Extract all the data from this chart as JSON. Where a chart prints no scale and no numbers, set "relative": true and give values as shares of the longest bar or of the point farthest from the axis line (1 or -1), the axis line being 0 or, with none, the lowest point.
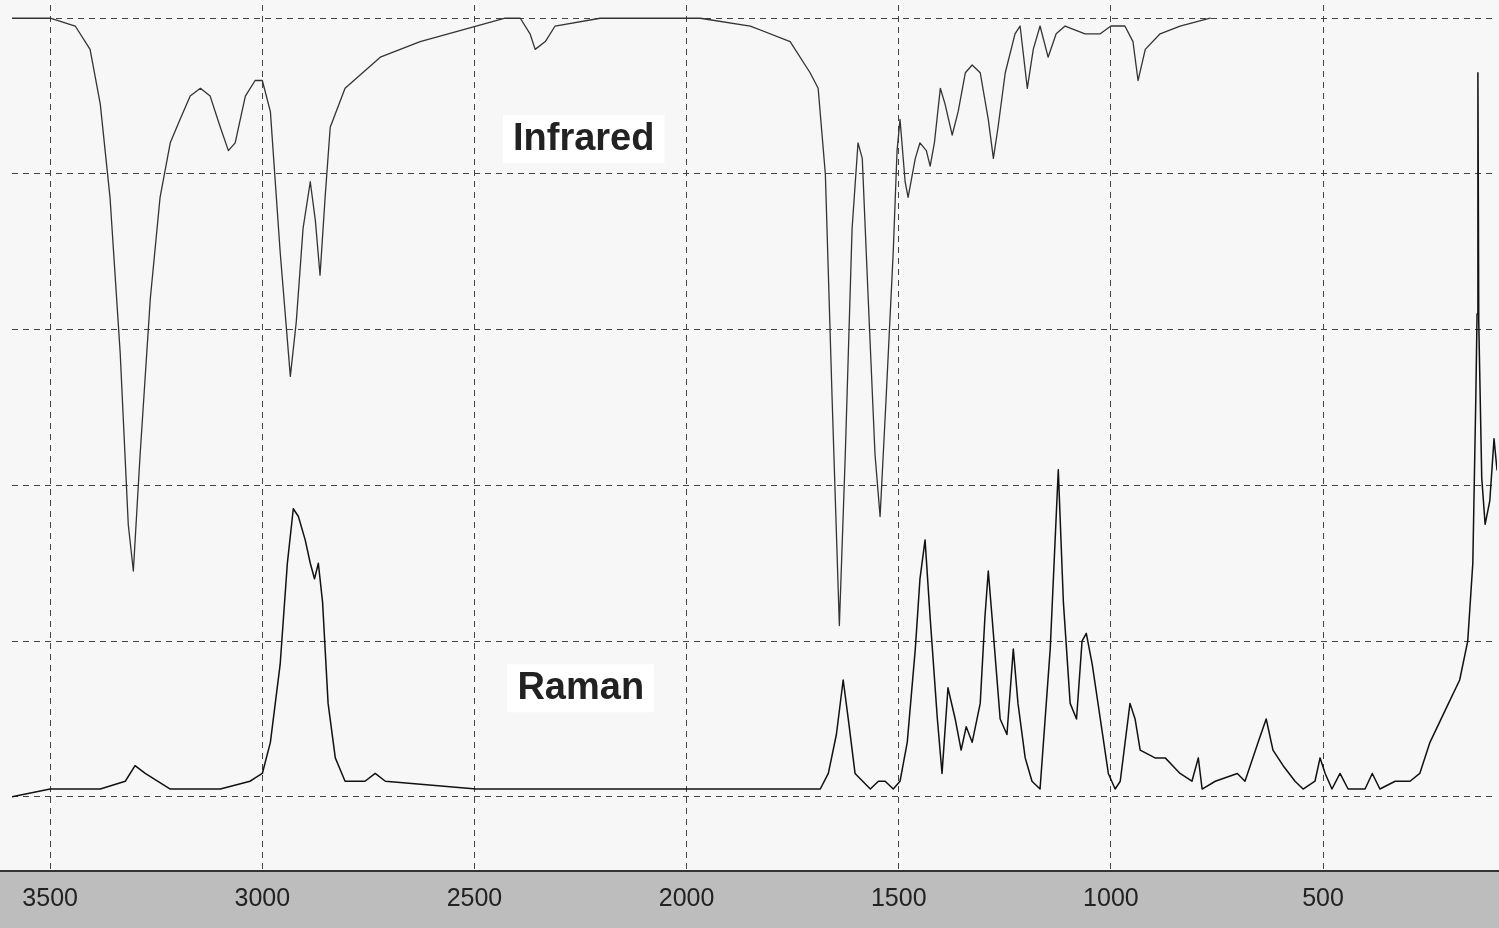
{
  "chart_data": {
    "type": "line",
    "relative": true,
    "grid": true,
    "legend": false,
    "marker": "none",
    "xlim": [
      3590,
      90
    ],
    "xticks": [
      3500,
      3000,
      2500,
      2000,
      1500,
      1000,
      500
    ],
    "series": [
      {
        "name": "Infrared",
        "color": "#333333",
        "x": [
          3590,
          3500,
          3441,
          3406,
          3382,
          3359,
          3335,
          3316,
          3304,
          3288,
          3264,
          3241,
          3217,
          3194,
          3170,
          3146,
          3123,
          3099,
          3080,
          3064,
          3040,
          3017,
          3000,
          2981,
          2958,
          2934,
          2920,
          2904,
          2887,
          2875,
          2864,
          2852,
          2840,
          2805,
          2722,
          2628,
          2496,
          2428,
          2392,
          2369,
          2357,
          2333,
          2310,
          2204,
          2086,
          1968,
          1850,
          1756,
          1709,
          1690,
          1673,
          1657,
          1640,
          1626,
          1610,
          1596,
          1586,
          1572,
          1556,
          1544,
          1530,
          1513,
          1504,
          1497,
          1485,
          1478,
          1461,
          1450,
          1435,
          1426,
          1416,
          1402,
          1391,
          1374,
          1360,
          1343,
          1327,
          1308,
          1289,
          1277,
          1266,
          1249,
          1226,
          1214,
          1197,
          1183,
          1167,
          1148,
          1129,
          1108,
          1061,
          1025,
          1000,
          967,
          948,
          936,
          919,
          884,
          837,
          766
        ],
        "values": [
          1.0,
          1.0,
          0.99,
          0.96,
          0.89,
          0.77,
          0.57,
          0.35,
          0.29,
          0.44,
          0.64,
          0.77,
          0.84,
          0.87,
          0.9,
          0.91,
          0.9,
          0.86,
          0.83,
          0.84,
          0.9,
          0.92,
          0.92,
          0.88,
          0.7,
          0.54,
          0.61,
          0.73,
          0.79,
          0.74,
          0.67,
          0.77,
          0.86,
          0.91,
          0.95,
          0.97,
          0.99,
          1.0,
          1.0,
          0.98,
          0.96,
          0.97,
          0.99,
          1.0,
          1.0,
          1.0,
          0.99,
          0.97,
          0.93,
          0.91,
          0.8,
          0.51,
          0.22,
          0.44,
          0.73,
          0.84,
          0.82,
          0.64,
          0.44,
          0.36,
          0.51,
          0.7,
          0.83,
          0.87,
          0.79,
          0.77,
          0.82,
          0.84,
          0.83,
          0.81,
          0.84,
          0.91,
          0.89,
          0.85,
          0.88,
          0.93,
          0.94,
          0.93,
          0.87,
          0.82,
          0.86,
          0.93,
          0.98,
          0.99,
          0.91,
          0.96,
          0.99,
          0.95,
          0.98,
          0.99,
          0.98,
          0.98,
          0.99,
          0.99,
          0.97,
          0.92,
          0.96,
          0.98,
          0.99,
          1.0
        ]
      },
      {
        "name": "Raman",
        "color": "#111111",
        "x": [
          3590,
          3500,
          3382,
          3323,
          3300,
          3276,
          3217,
          3099,
          3029,
          3000,
          2981,
          2958,
          2941,
          2927,
          2915,
          2899,
          2887,
          2877,
          2868,
          2858,
          2845,
          2828,
          2805,
          2758,
          2734,
          2710,
          2496,
          2204,
          1968,
          1732,
          1685,
          1666,
          1647,
          1631,
          1619,
          1603,
          1567,
          1548,
          1532,
          1513,
          1497,
          1480,
          1461,
          1450,
          1438,
          1426,
          1409,
          1398,
          1384,
          1367,
          1353,
          1341,
          1327,
          1308,
          1297,
          1289,
          1280,
          1261,
          1245,
          1230,
          1219,
          1202,
          1186,
          1167,
          1143,
          1124,
          1112,
          1096,
          1081,
          1068,
          1058,
          1044,
          1025,
          1006,
          990,
          978,
          955,
          943,
          931,
          896,
          872,
          837,
          809,
          794,
          785,
          754,
          702,
          684,
          653,
          634,
          618,
          594,
          566,
          547,
          519,
          507,
          495,
          479,
          460,
          441,
          401,
          384,
          366,
          330,
          295,
          272,
          248,
          213,
          178,
          159,
          147,
          140,
          137,
          135,
          133,
          126,
          118,
          107,
          97,
          90
        ],
        "values": [
          0.0,
          0.01,
          0.01,
          0.02,
          0.04,
          0.03,
          0.01,
          0.01,
          0.02,
          0.03,
          0.07,
          0.17,
          0.3,
          0.37,
          0.36,
          0.33,
          0.3,
          0.28,
          0.3,
          0.25,
          0.12,
          0.05,
          0.02,
          0.02,
          0.03,
          0.02,
          0.01,
          0.01,
          0.01,
          0.01,
          0.01,
          0.03,
          0.08,
          0.15,
          0.1,
          0.03,
          0.01,
          0.02,
          0.02,
          0.01,
          0.02,
          0.07,
          0.19,
          0.28,
          0.33,
          0.23,
          0.1,
          0.03,
          0.14,
          0.1,
          0.06,
          0.09,
          0.07,
          0.12,
          0.23,
          0.29,
          0.23,
          0.1,
          0.08,
          0.19,
          0.12,
          0.05,
          0.02,
          0.01,
          0.19,
          0.42,
          0.25,
          0.12,
          0.1,
          0.2,
          0.21,
          0.17,
          0.1,
          0.03,
          0.01,
          0.02,
          0.12,
          0.1,
          0.06,
          0.05,
          0.05,
          0.03,
          0.02,
          0.05,
          0.01,
          0.02,
          0.03,
          0.02,
          0.07,
          0.1,
          0.06,
          0.04,
          0.02,
          0.01,
          0.02,
          0.05,
          0.03,
          0.01,
          0.03,
          0.01,
          0.01,
          0.03,
          0.01,
          0.02,
          0.02,
          0.03,
          0.07,
          0.11,
          0.15,
          0.2,
          0.3,
          0.51,
          0.62,
          0.93,
          0.61,
          0.41,
          0.35,
          0.38,
          0.46,
          0.42
        ]
      }
    ]
  }
}
